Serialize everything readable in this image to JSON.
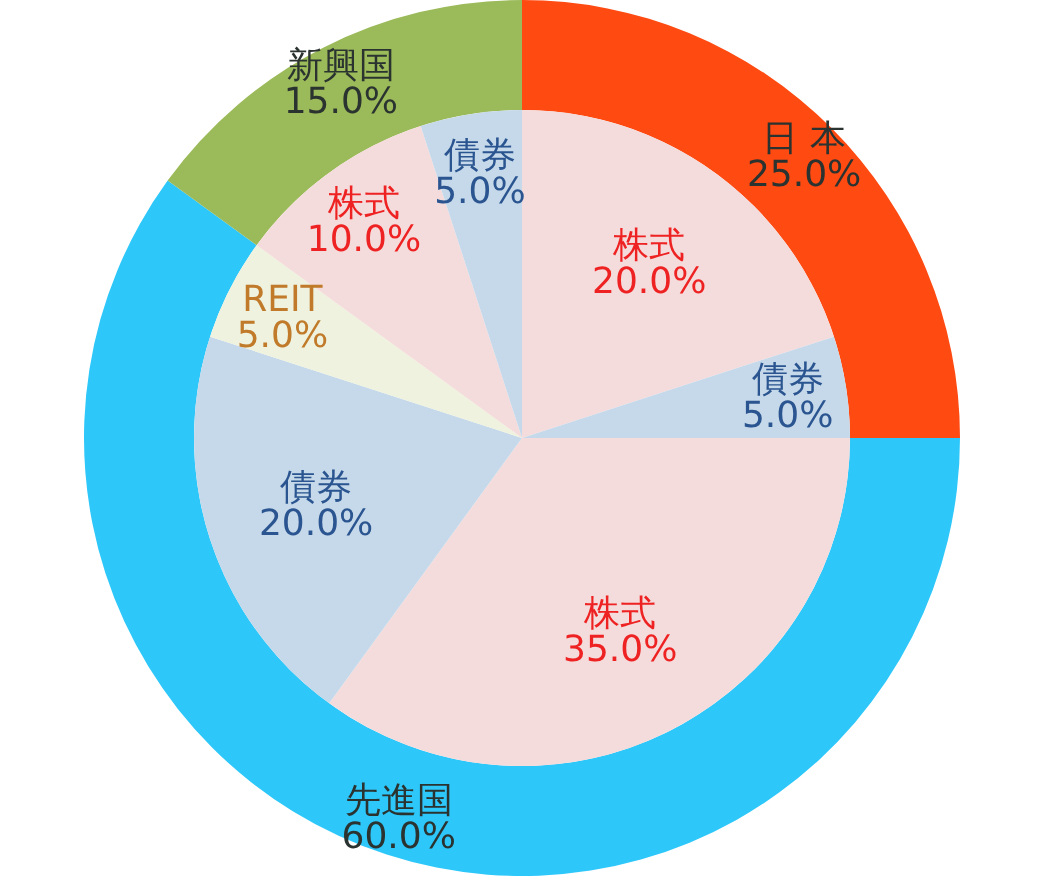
{
  "chart_data": [
    {
      "type": "donut",
      "categories": [
        "日 本",
        "先進国",
        "新興国"
      ],
      "values": [
        25,
        60,
        15
      ],
      "value_labels": [
        "25.0%",
        "60.0%",
        "15.0%"
      ],
      "colors": [
        "#ff4a12",
        "#2ec7fa",
        "#9bba59"
      ]
    },
    {
      "type": "pie",
      "categories": [
        "株式",
        "債券",
        "株式",
        "債券",
        "REIT",
        "株式",
        "債券"
      ],
      "values": [
        20,
        5,
        35,
        20,
        5,
        10,
        5
      ],
      "value_labels": [
        "20.0%",
        "5.0%",
        "35.0%",
        "20.0%",
        "5.0%",
        "10.0%",
        "5.0%"
      ],
      "colors": [
        "#f5dcdc",
        "#c6d9ea",
        "#f5dcdc",
        "#c6d9ea",
        "#eef2de",
        "#f5dcdc",
        "#c6d9ea"
      ]
    }
  ]
}
